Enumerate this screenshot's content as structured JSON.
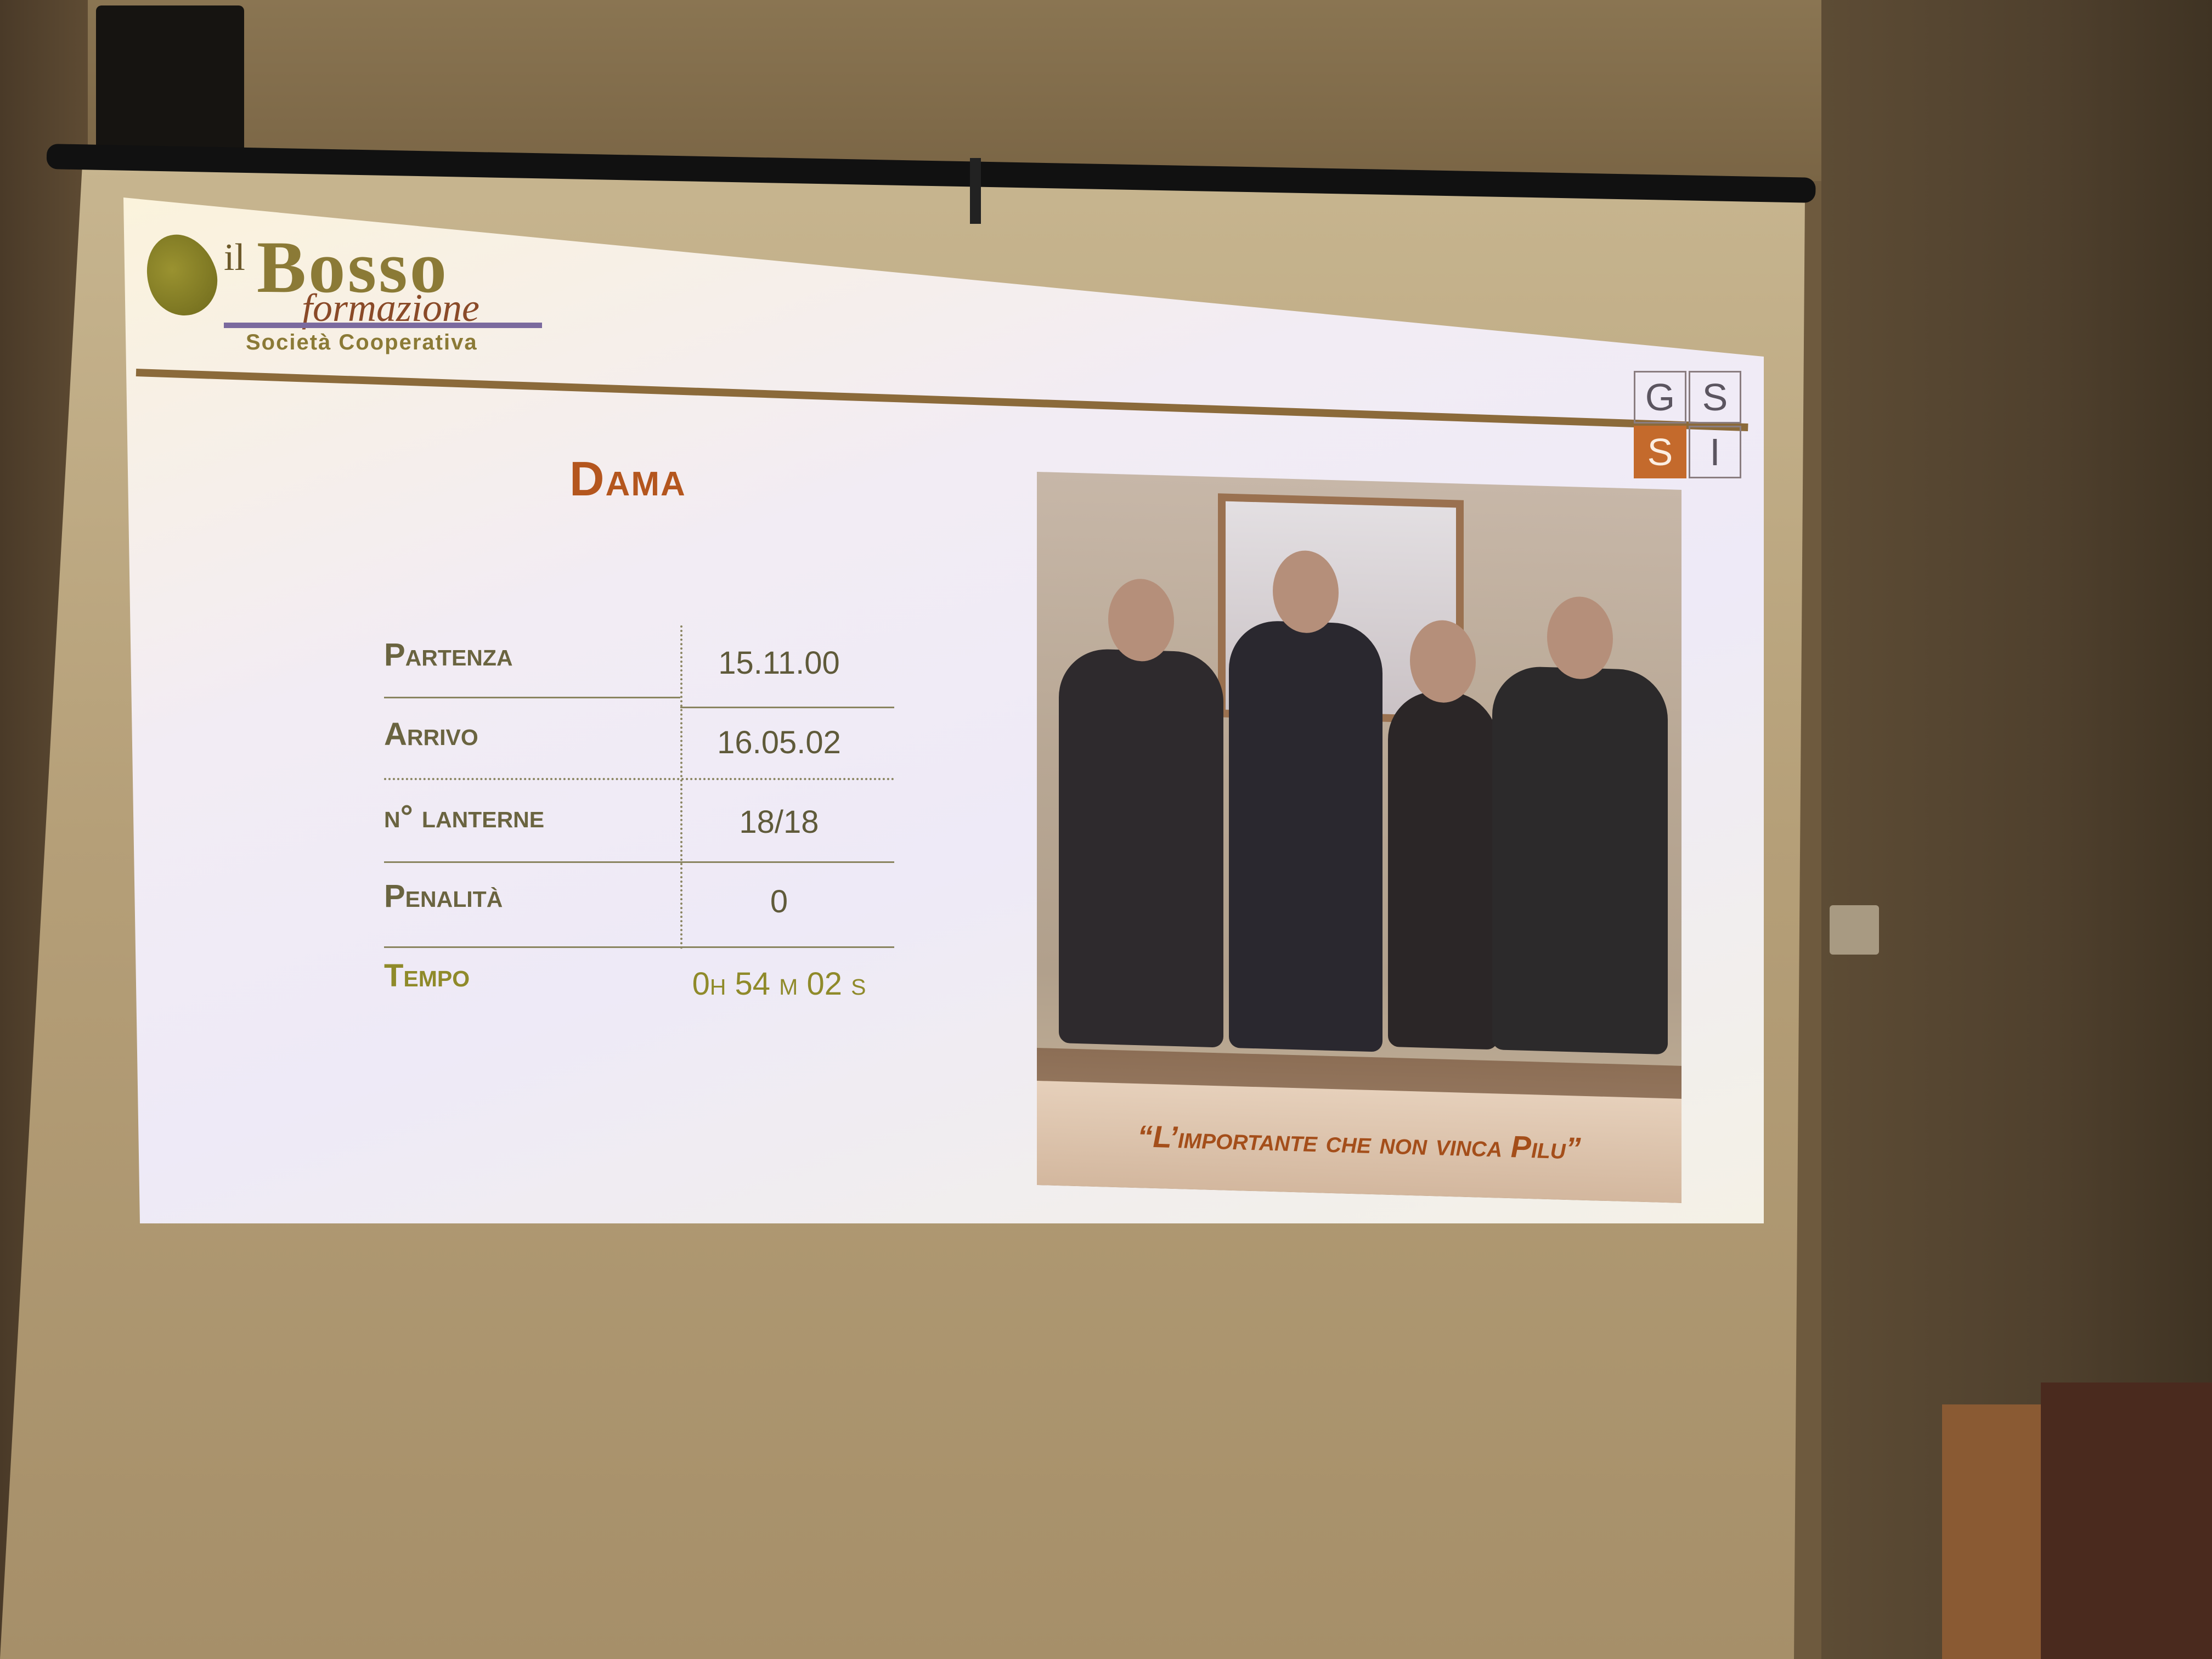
{
  "slide": {
    "logo": {
      "prefix": "il",
      "name": "Bosso",
      "sub": "formazione",
      "tagline": "Società Cooperativa"
    },
    "partner_logo": {
      "letters": [
        "G",
        "S",
        "S",
        "I"
      ],
      "accent_color": "#c46a2c"
    },
    "title": "Dama",
    "results": {
      "rows": [
        {
          "label": "Partenza",
          "value": "15.11.00"
        },
        {
          "label": "Arrivo",
          "value": "16.05.02"
        },
        {
          "label": "n° lanterne",
          "value": "18/18"
        },
        {
          "label": "Penalità",
          "value": "0"
        },
        {
          "label": "Tempo",
          "value": "0h 54 m 02 s"
        }
      ]
    },
    "photo_caption": "“L’importante che non vinca Pilu”"
  }
}
